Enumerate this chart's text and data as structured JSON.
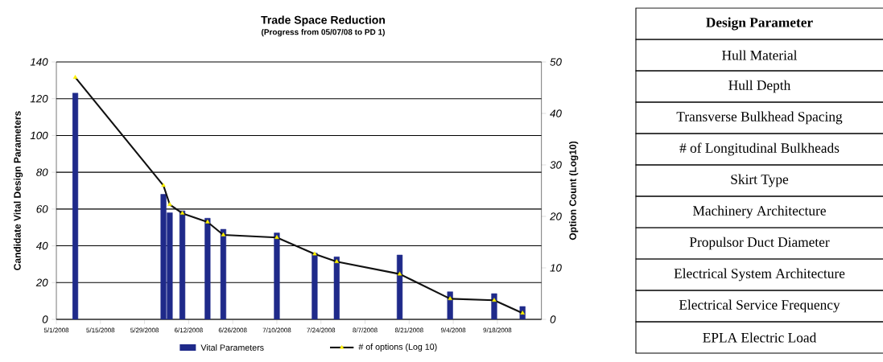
{
  "chart_data": [
    {
      "type": "bar",
      "title": "Trade Space Reduction",
      "subtitle": "(Progress from 05/07/08 to PD 1)",
      "ylabel": "Candidate Vital Design Parameters",
      "y2label": "Option Count (Log10)",
      "xlim": [
        "2008-05-01",
        "2008-10-02"
      ],
      "xticks": [
        {
          "value": "2008-05-01",
          "label": "5/1/2008"
        },
        {
          "value": "2008-05-15",
          "label": "5/15/2008"
        },
        {
          "value": "2008-05-29",
          "label": "5/29/2008"
        },
        {
          "value": "2008-06-12",
          "label": "6/12/2008"
        },
        {
          "value": "2008-06-26",
          "label": "6/26/2008"
        },
        {
          "value": "2008-07-10",
          "label": "7/10/2008"
        },
        {
          "value": "2008-07-24",
          "label": "7/24/2008"
        },
        {
          "value": "2008-08-07",
          "label": "8/7/2008"
        },
        {
          "value": "2008-08-21",
          "label": "8/21/2008"
        },
        {
          "value": "2008-09-04",
          "label": "9/4/2008"
        },
        {
          "value": "2008-09-18",
          "label": "9/18/2008"
        }
      ],
      "ylim": [
        0,
        140
      ],
      "yticks": [
        0,
        20,
        40,
        60,
        80,
        100,
        120,
        140
      ],
      "y2lim": [
        0,
        50
      ],
      "y2ticks": [
        0,
        10,
        20,
        30,
        40,
        50
      ],
      "grid": "y",
      "legend": "bottom",
      "series": [
        {
          "name": "Vital Parameters",
          "type": "bar",
          "color": "#1f2a8a",
          "x": [
            "2008-05-07",
            "2008-06-04",
            "2008-06-06",
            "2008-06-10",
            "2008-06-18",
            "2008-06-23",
            "2008-07-10",
            "2008-07-22",
            "2008-07-29",
            "2008-08-18",
            "2008-09-03",
            "2008-09-17",
            "2008-09-26"
          ],
          "values": [
            123,
            68,
            58,
            59,
            55,
            49,
            47,
            36,
            34,
            35,
            15,
            14,
            7
          ]
        },
        {
          "name": "# of options (Log 10)",
          "type": "line",
          "axis": "y2",
          "color": "#111111",
          "marker": "triangle",
          "x": [
            "2008-05-07",
            "2008-06-04",
            "2008-06-06",
            "2008-06-10",
            "2008-06-18",
            "2008-06-23",
            "2008-07-10",
            "2008-07-22",
            "2008-07-29",
            "2008-08-18",
            "2008-09-03",
            "2008-09-17",
            "2008-09-26"
          ],
          "values": [
            47,
            26,
            22.3,
            20.6,
            18.9,
            16.4,
            15.9,
            12.7,
            11.2,
            8.8,
            4.0,
            3.7,
            1.2
          ]
        }
      ]
    },
    {
      "type": "other",
      "title": "Design Parameter",
      "annotations": [
        "Hull Material",
        "Hull Depth",
        "Transverse Bulkhead Spacing",
        "# of Longitudinal Bulkheads",
        "Skirt Type",
        "Machinery Architecture",
        "Propulsor Duct Diameter",
        "Electrical System Architecture",
        "Electrical Service Frequency",
        "EPLA Electric Load"
      ]
    }
  ]
}
